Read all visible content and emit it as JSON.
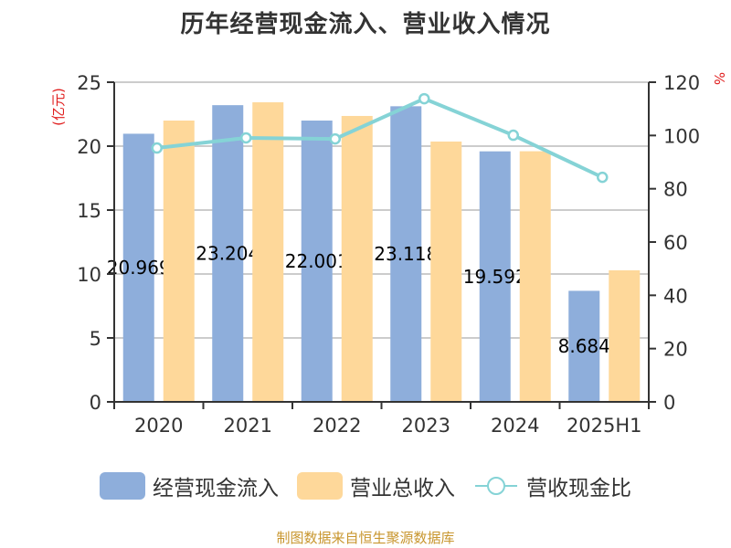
{
  "title": "历年经营现金流入、营业收入情况",
  "left_axis_unit": "(亿元)",
  "right_axis_unit": "%",
  "legend": [
    {
      "label": "经营现金流入",
      "color": "#8eaedb",
      "type": "bar"
    },
    {
      "label": "营业总收入",
      "color": "#fed89a",
      "type": "bar"
    },
    {
      "label": "营收现金比",
      "color": "#85d3d6",
      "type": "line"
    }
  ],
  "source": "制图数据来自恒生聚源数据库",
  "chart_data": {
    "type": "bar",
    "title": "历年经营现金流入、营业收入情况",
    "categories": [
      "2020",
      "2021",
      "2022",
      "2023",
      "2024",
      "2025H1"
    ],
    "series": [
      {
        "name": "经营现金流入",
        "type": "bar",
        "axis": "left",
        "values": [
          20.969,
          23.204,
          22.001,
          23.118,
          19.592,
          8.684
        ],
        "labels": [
          "20.969",
          "23.204",
          "22.001",
          "23.118",
          "19.592",
          "8.684"
        ]
      },
      {
        "name": "营业总收入",
        "type": "bar",
        "axis": "left",
        "values": [
          22.0,
          23.43,
          22.36,
          20.36,
          19.6,
          10.29
        ]
      },
      {
        "name": "营收现金比",
        "type": "line",
        "axis": "right",
        "values": [
          95.3,
          99.1,
          98.7,
          113.8,
          100.1,
          84.3
        ]
      }
    ],
    "xlabel": "",
    "ylabel": "(亿元)",
    "ylabel_right": "%",
    "ylim": [
      0,
      25
    ],
    "ylim_right": [
      0,
      120
    ],
    "yticks": [
      0,
      5,
      10,
      15,
      20,
      25
    ],
    "yticks_right": [
      0,
      20,
      40,
      60,
      80,
      100,
      120
    ],
    "grid": true,
    "legend_position": "bottom"
  }
}
